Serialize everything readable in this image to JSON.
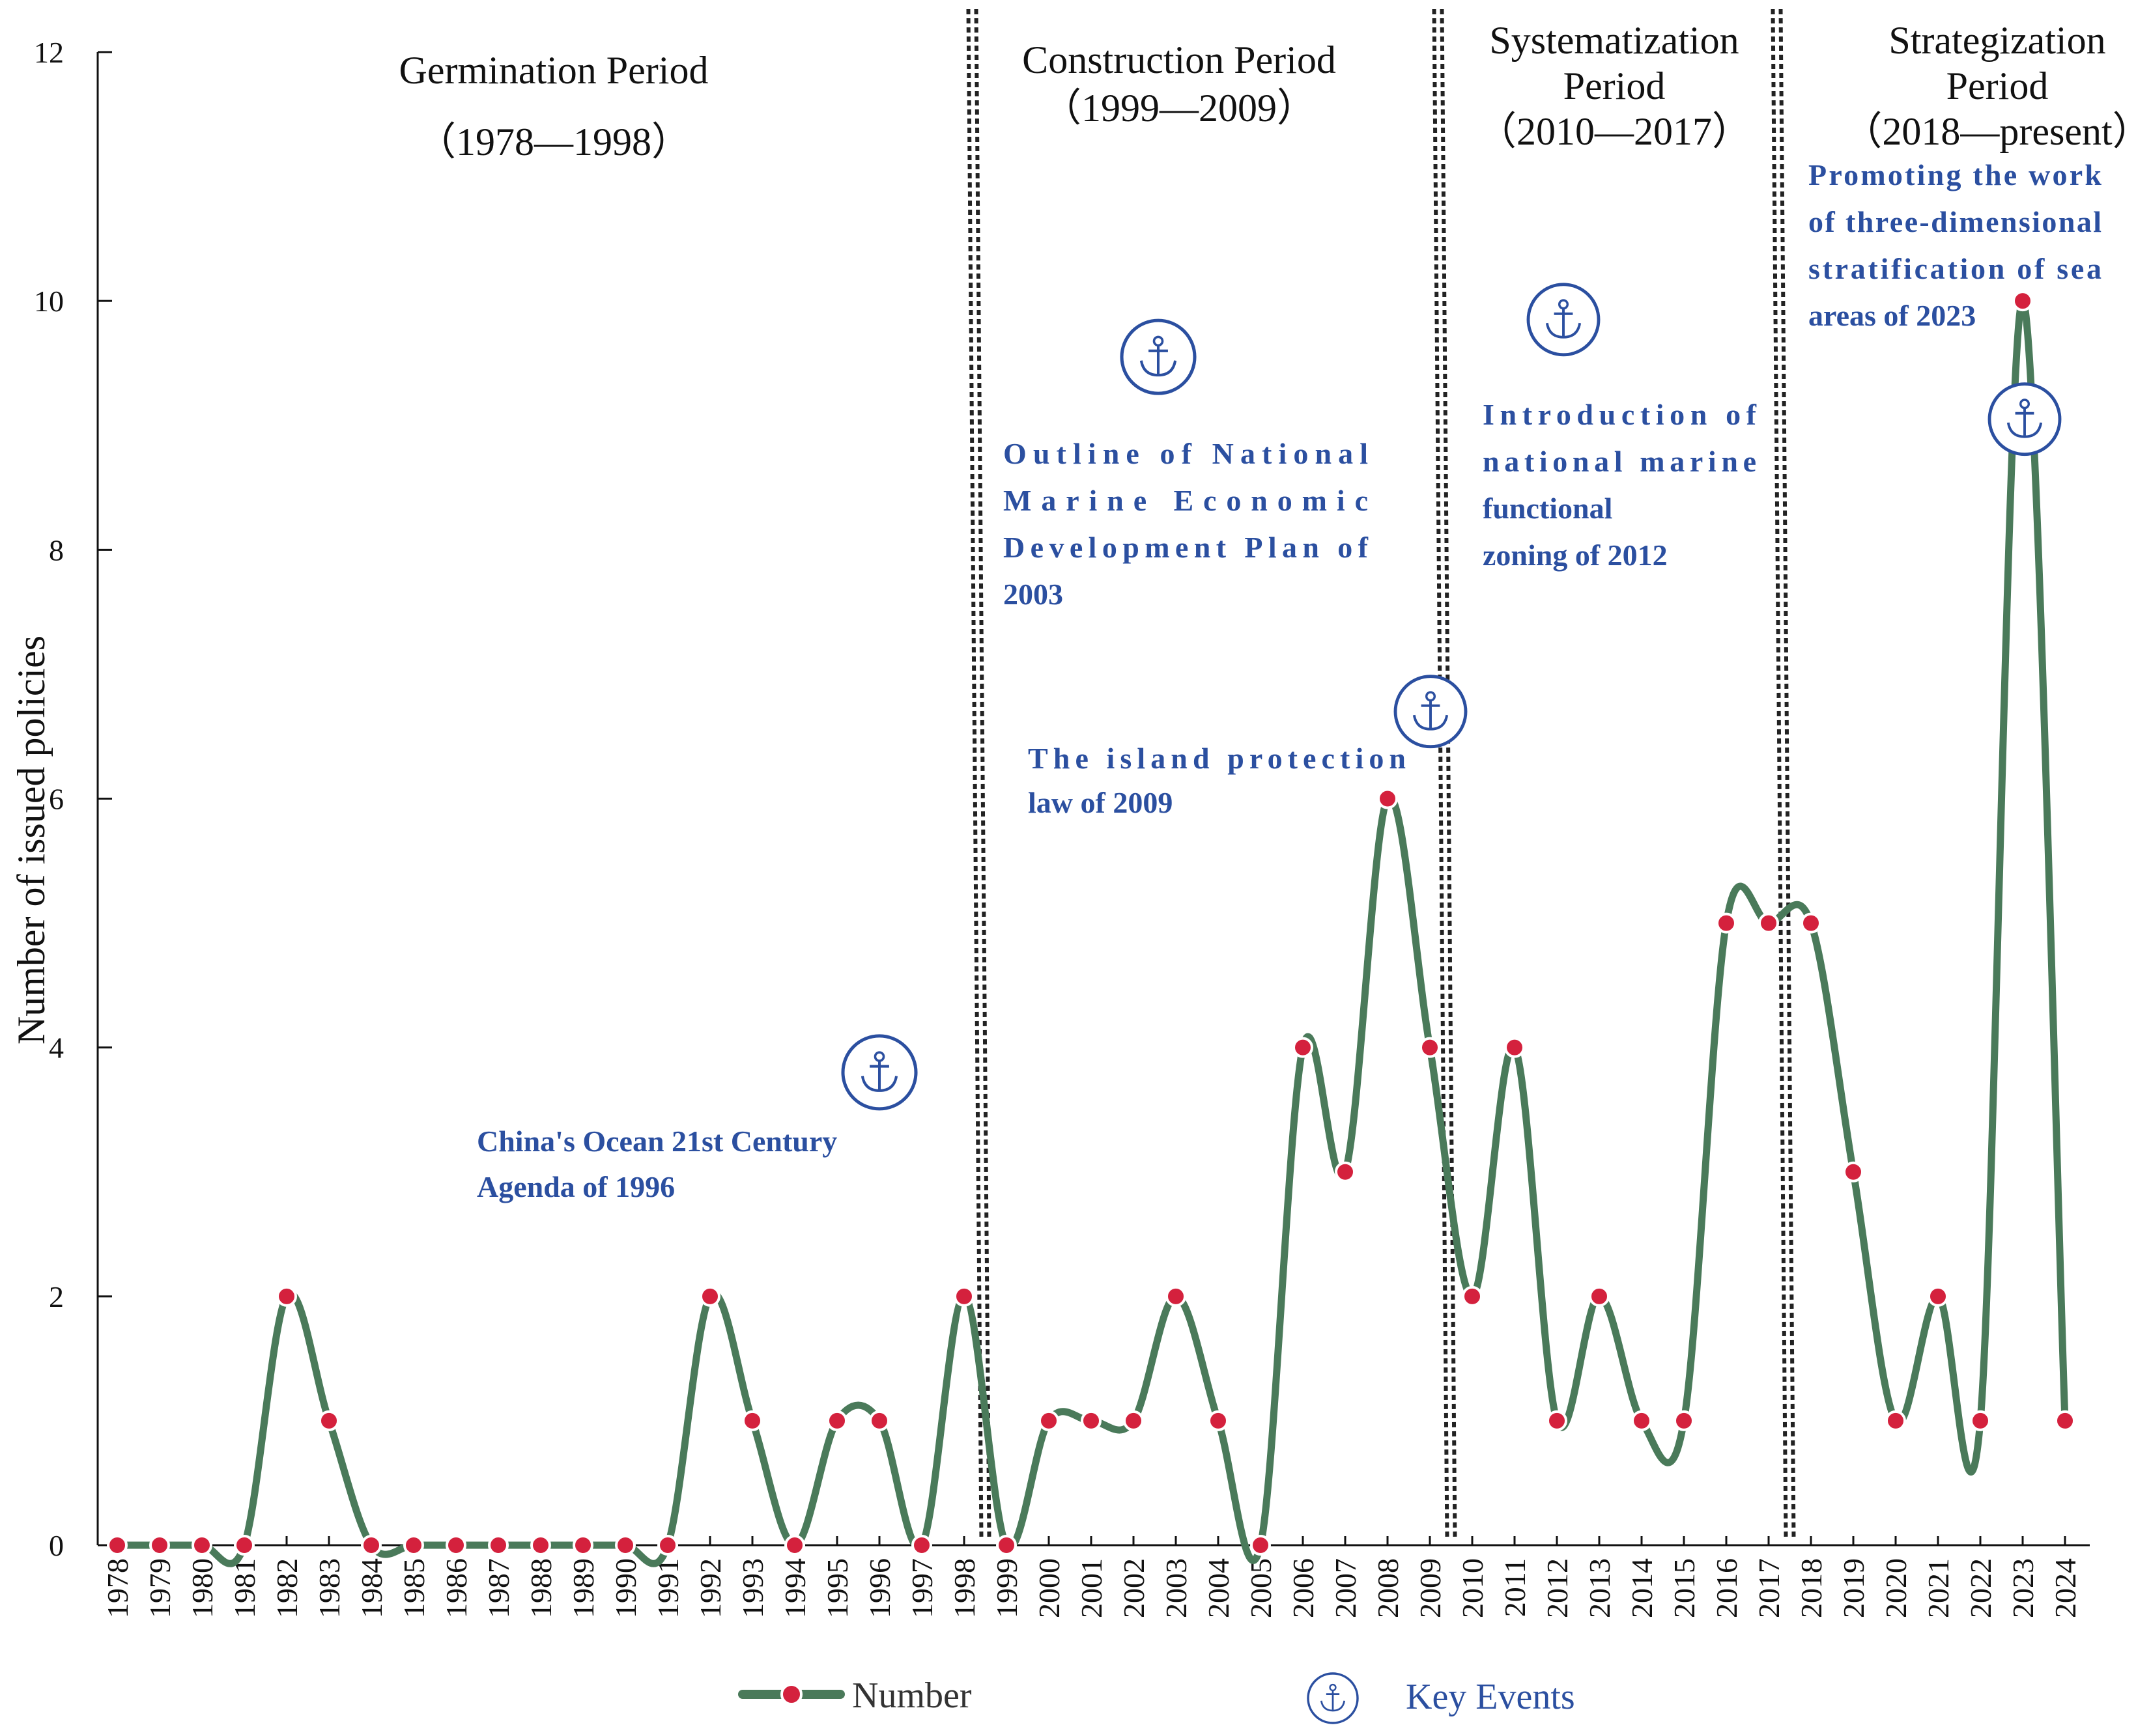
{
  "chart_data": {
    "type": "line",
    "ylabel": "Number of issued policies",
    "ylim": [
      0,
      12
    ],
    "yticks": [
      0,
      2,
      4,
      6,
      8,
      10,
      12
    ],
    "years": [
      1978,
      1979,
      1980,
      1981,
      1982,
      1983,
      1984,
      1985,
      1986,
      1987,
      1988,
      1989,
      1990,
      1991,
      1992,
      1993,
      1994,
      1995,
      1996,
      1997,
      1998,
      1999,
      2000,
      2001,
      2002,
      2003,
      2004,
      2005,
      2006,
      2007,
      2008,
      2009,
      2010,
      2011,
      2012,
      2013,
      2014,
      2015,
      2016,
      2017,
      2018,
      2019,
      2020,
      2021,
      2022,
      2023,
      2024
    ],
    "series": [
      {
        "name": "Number",
        "values": [
          0,
          0,
          0,
          0,
          2,
          1,
          0,
          0,
          0,
          0,
          0,
          0,
          0,
          0,
          2,
          1,
          0,
          1,
          1,
          0,
          2,
          0,
          1,
          1,
          1,
          2,
          1,
          0,
          4,
          3,
          6,
          4,
          2,
          4,
          1,
          2,
          1,
          1,
          5,
          5,
          5,
          3,
          1,
          2,
          1,
          10,
          1
        ]
      }
    ],
    "period_dividers": [
      1998.5,
      2009.5,
      2017.5
    ],
    "periods": [
      {
        "name": "Germination Period",
        "range": "（1978—1998）"
      },
      {
        "name": "Construction Period",
        "range": "（1999—2009）"
      },
      {
        "name_line1": "Systematization",
        "name_line2": "Period",
        "range": "（2010—2017）"
      },
      {
        "name_line1": "Strategization",
        "name_line2": "Period",
        "range": "（2018—present）"
      }
    ],
    "key_events": [
      {
        "year": 1996,
        "icon_value": 3.8,
        "lines": [
          "China's Ocean 21st Century",
          "Agenda of 1996"
        ]
      },
      {
        "year": 2003,
        "icon_value": 9.55,
        "lines": [
          "Outline of National",
          "Marine Economic",
          "Development Plan of",
          "2003"
        ]
      },
      {
        "year": 2009,
        "icon_value": 6.7,
        "lines": [
          "The island protection",
          "law of 2009"
        ]
      },
      {
        "year": 2012,
        "icon_value": 9.85,
        "lines": [
          "Introduction of",
          "national marine",
          "functional",
          "zoning of 2012"
        ]
      },
      {
        "year": 2023,
        "icon_value": 9.05,
        "lines": [
          "Promoting the work",
          "of three-dimensional",
          "stratification of sea",
          "areas of 2023"
        ]
      }
    ],
    "legend": {
      "line_label": "Number",
      "event_label": "Key Events"
    },
    "colors": {
      "line": "#4a7a5a",
      "marker": "#d4213d",
      "event": "#2b4fa0",
      "divider": "#222222"
    }
  }
}
